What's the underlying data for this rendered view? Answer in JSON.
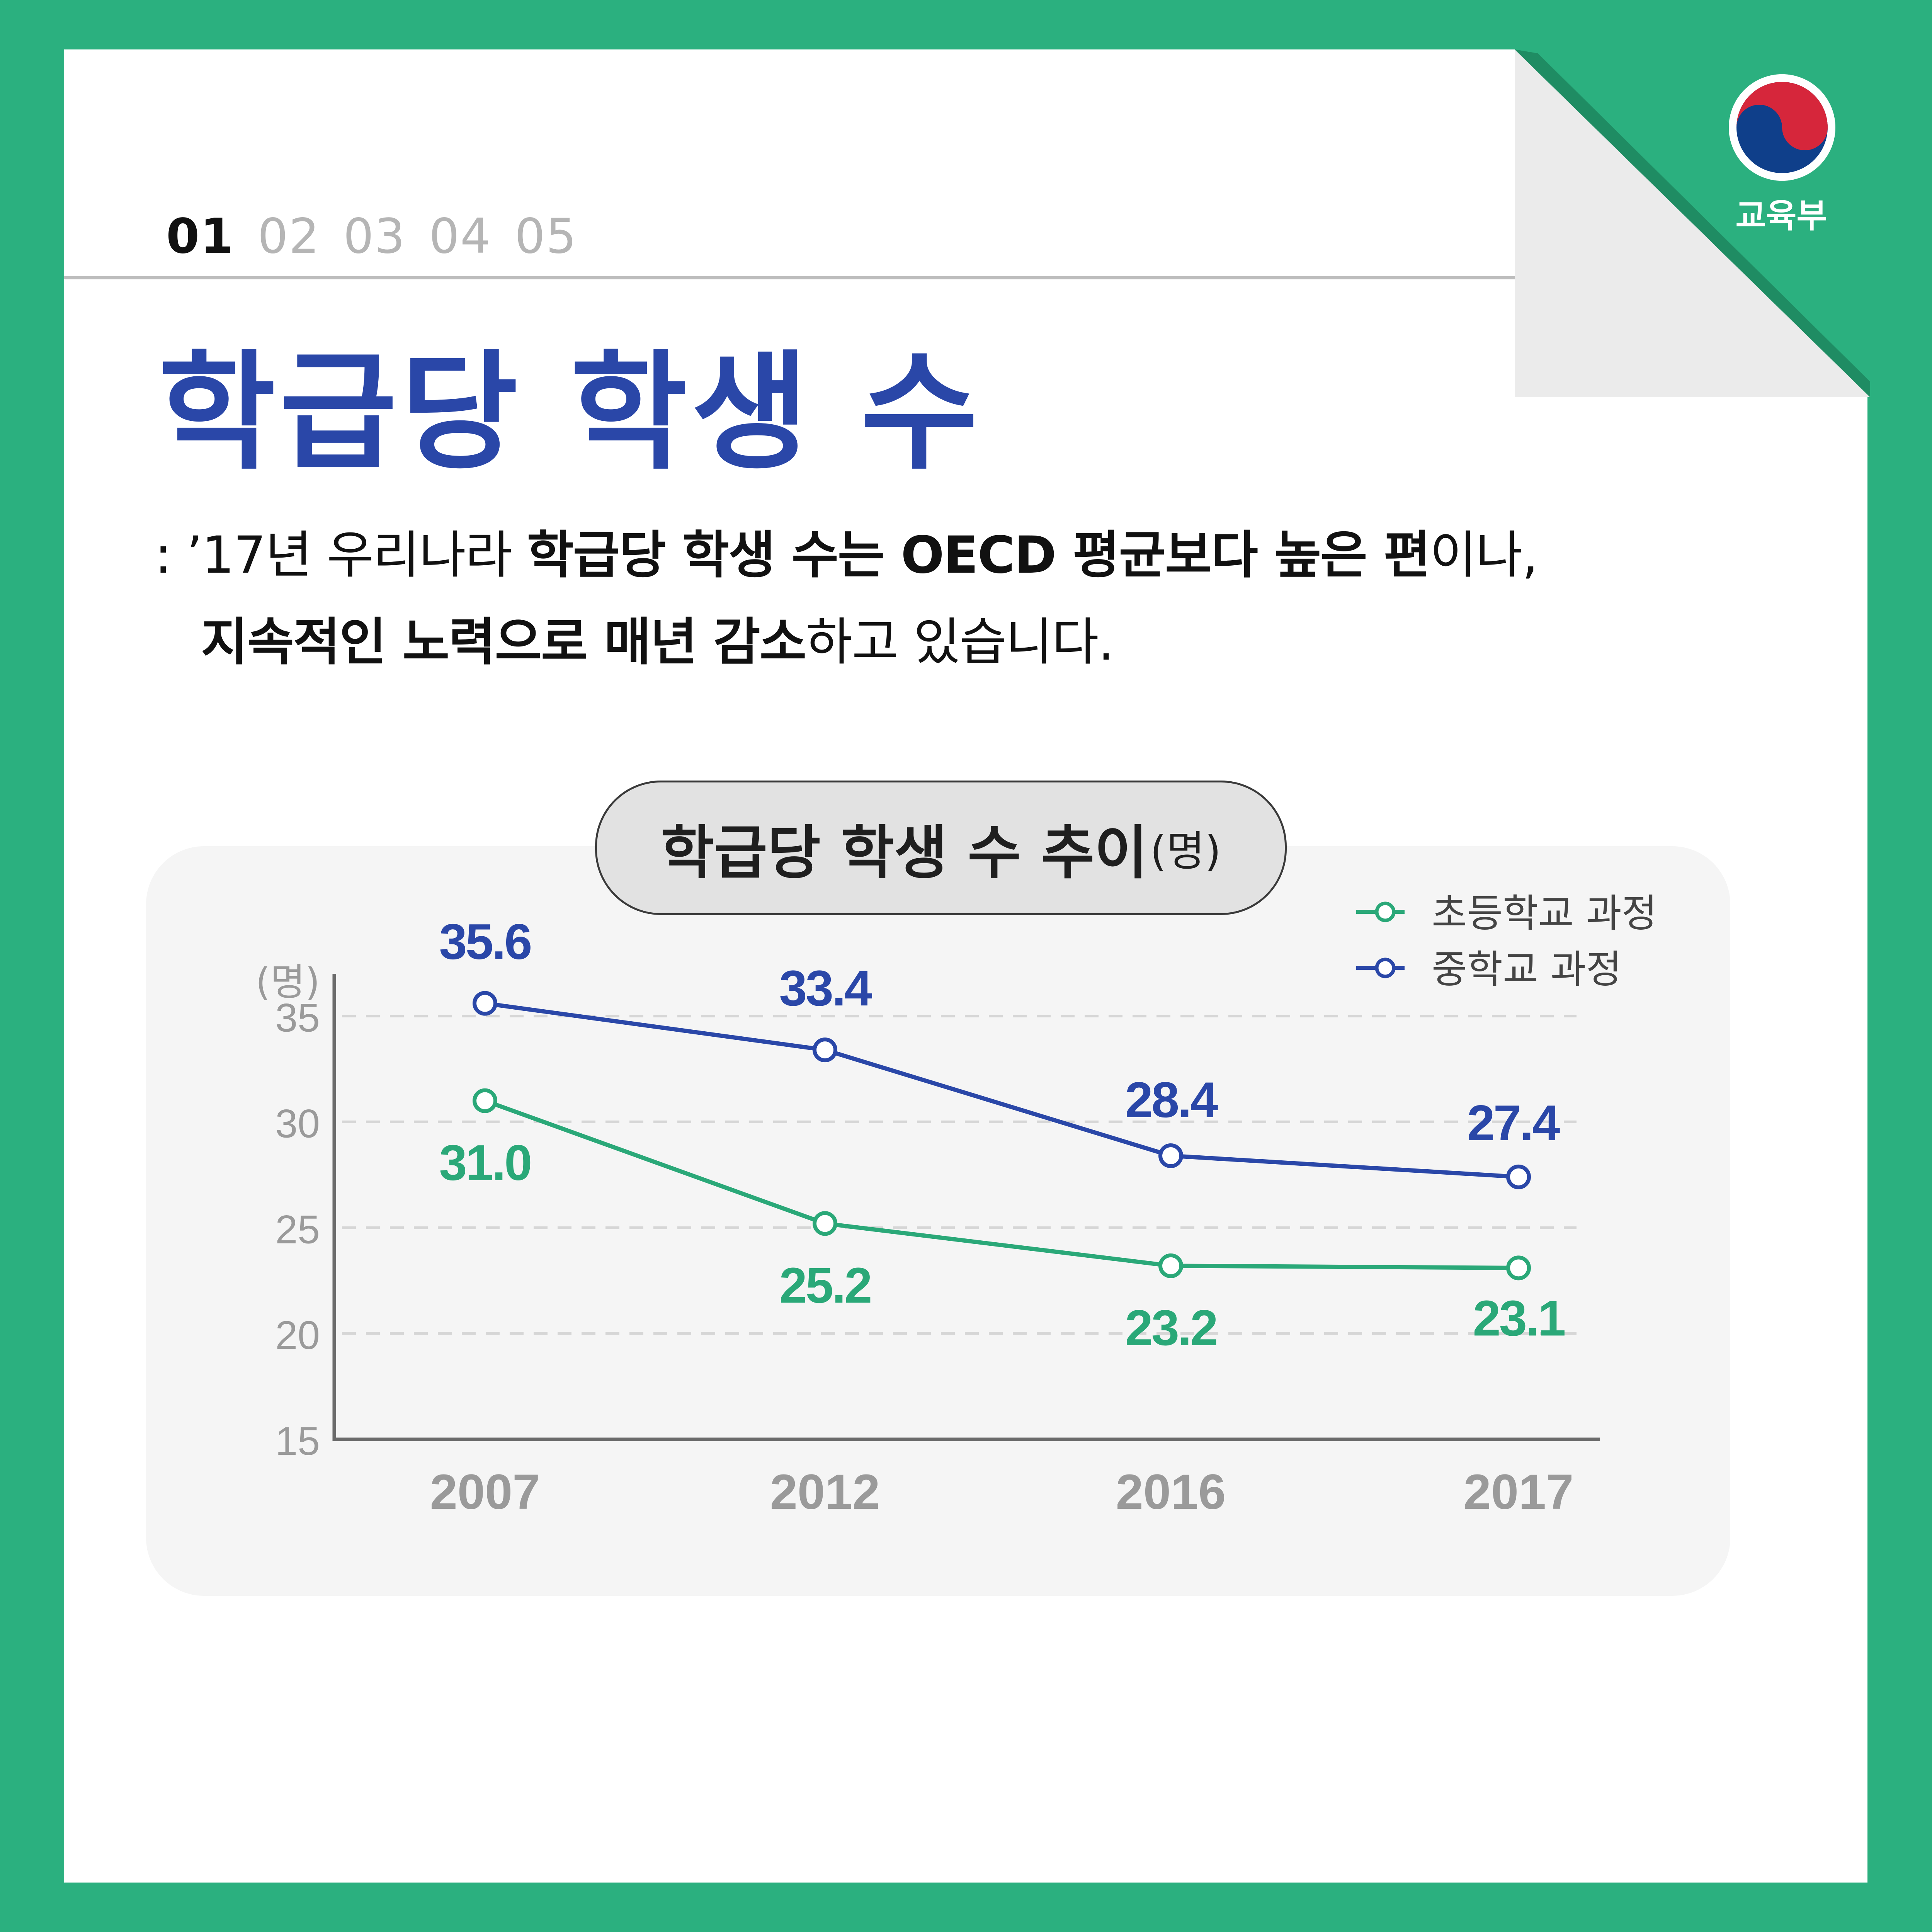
{
  "header": {
    "org_name": "교육부",
    "pages": [
      "01",
      "02",
      "03",
      "04",
      "05"
    ],
    "active_page": "01"
  },
  "title": "학급당 학생 수",
  "description": {
    "line1": [
      {
        "text": ": ’17년 우리나라 ",
        "bold": false
      },
      {
        "text": "학급당 학생 수는 OECD 평균보다 높은 편",
        "bold": true
      },
      {
        "text": "이나,",
        "bold": false
      }
    ],
    "line2": [
      {
        "text": "지속적인 노력으로 매년 감소",
        "bold": true
      },
      {
        "text": "하고 있습니다.",
        "bold": false
      }
    ]
  },
  "colors": {
    "background": "#2bb07f",
    "title": "#2a47a8",
    "elementary": "#2aa878",
    "middle": "#2a47a8"
  },
  "chart_data": {
    "type": "line",
    "title": "학급당 학생 수 추이",
    "title_unit": "(명)",
    "ylabel": "(명)",
    "categories": [
      "2007",
      "2012",
      "2016",
      "2017"
    ],
    "ylim": [
      15,
      37
    ],
    "yticks": [
      15,
      20,
      25,
      30,
      35
    ],
    "grid": true,
    "legend_position": "top-right",
    "series": [
      {
        "name": "초등학교 과정",
        "values": [
          31.0,
          25.2,
          23.2,
          23.1
        ],
        "labels": [
          "31.0",
          "25.2",
          "23.2",
          "23.1"
        ],
        "color": "#2aa878"
      },
      {
        "name": "중학교 과정",
        "values": [
          35.6,
          33.4,
          28.4,
          27.4
        ],
        "labels": [
          "35.6",
          "33.4",
          "28.4",
          "27.4"
        ],
        "color": "#2a47a8"
      }
    ]
  }
}
